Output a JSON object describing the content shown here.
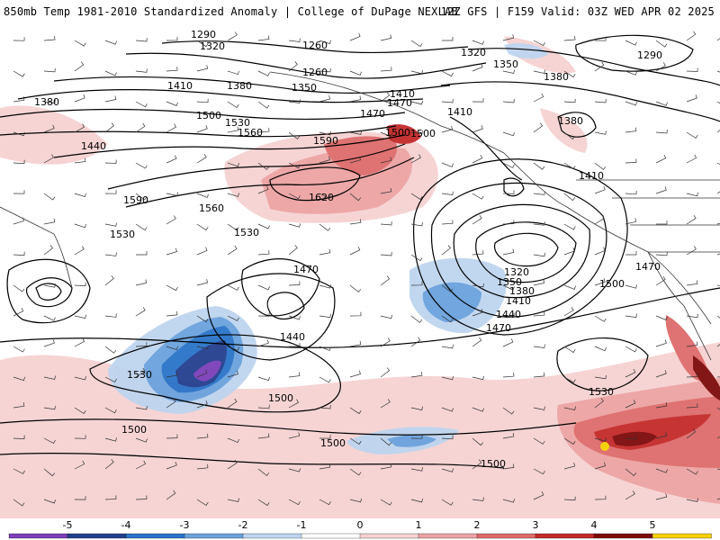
{
  "header": {
    "left": "850mb Temp 1981-2010 Standardized Anomaly | College of DuPage NEXLAB",
    "right": "12Z GFS | F159 Valid: 03Z WED APR 02 2025"
  },
  "map": {
    "contour_labels": [
      "1290",
      "1320",
      "1260",
      "1350",
      "1380",
      "1410",
      "1440",
      "1470",
      "1500",
      "1530",
      "1560",
      "1590",
      "1620",
      "1320",
      "1350",
      "1290",
      "1380",
      "1380",
      "1410",
      "1410",
      "1470",
      "1500",
      "1530",
      "1440",
      "1470",
      "1500",
      "1530",
      "1500",
      "1500",
      "1500",
      "1320",
      "1350",
      "1380",
      "1410",
      "1440",
      "1470"
    ],
    "colors": {
      "neg5": "#7b3fb8",
      "neg4": "#233f8f",
      "neg3": "#2a73c9",
      "neg2": "#6aa2dd",
      "neg1": "#bed5ef",
      "pos1": "#f6d2d2",
      "pos2": "#eda3a3",
      "pos3": "#de6b6b",
      "pos4": "#c42a2a",
      "pos5": "#7d0a0a",
      "pos6": "#f5d000"
    }
  },
  "colorbar": {
    "labels": [
      "-5",
      "-4",
      "-3",
      "-2",
      "-1",
      "0",
      "1",
      "2",
      "3",
      "4",
      "5"
    ]
  }
}
